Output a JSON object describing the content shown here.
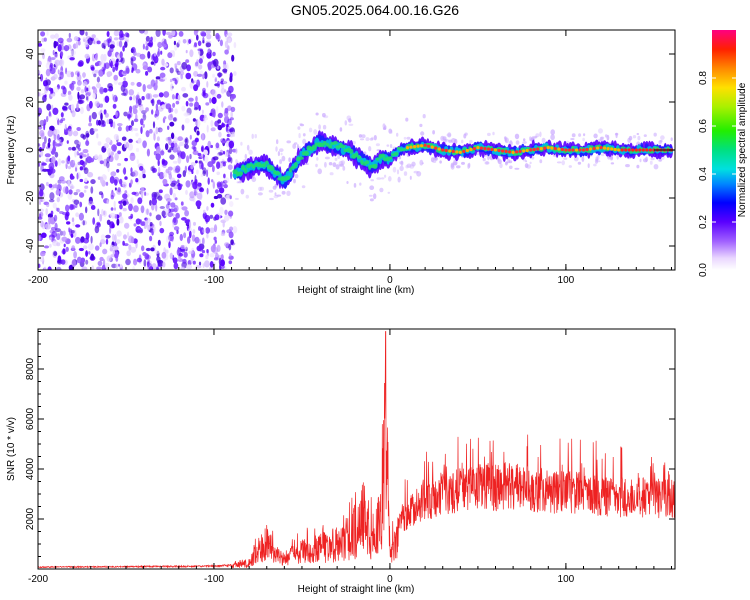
{
  "title": "GN05.2025.064.00.16.G26",
  "chart_data": [
    {
      "type": "heatmap",
      "xlabel": "Height of straight line (km)",
      "ylabel": "Frequency (Hz)",
      "xlim": [
        -200,
        162
      ],
      "ylim": [
        -50,
        50
      ],
      "x_ticks": [
        "-200",
        "-100",
        "0",
        "100"
      ],
      "y_ticks": [
        "-40",
        "-20",
        "0",
        "20",
        "40"
      ],
      "colorbar": {
        "label": "Normalized spectral amplitude",
        "ticks": [
          "0.0",
          "0.2",
          "0.4",
          "0.6",
          "0.8"
        ],
        "range": [
          0,
          1
        ]
      },
      "trace": {
        "x": [
          -88,
          -80,
          -70,
          -60,
          -50,
          -40,
          -30,
          -20,
          -10,
          -5,
          0,
          5,
          10,
          20,
          30,
          40,
          50,
          60,
          70,
          80,
          90,
          100,
          110,
          120,
          130,
          140,
          150,
          160
        ],
        "y": [
          -10,
          -7,
          -6,
          -13,
          -2,
          3,
          2,
          -2,
          -7,
          -3,
          -4,
          0,
          1,
          2,
          0,
          -1,
          1,
          0,
          -1,
          0,
          1,
          0,
          0,
          1,
          0,
          0,
          0,
          0
        ]
      }
    },
    {
      "type": "line",
      "xlabel": "Height of straight line (km)",
      "ylabel": "SNR (10 * v/v)",
      "xlim": [
        -200,
        162
      ],
      "ylim": [
        0,
        9600
      ],
      "x_ticks": [
        "-200",
        "-100",
        "0",
        "100"
      ],
      "y_ticks": [
        "2000",
        "4000",
        "6000",
        "8000"
      ],
      "color": "#ee2222",
      "series_envelope": {
        "x": [
          -200,
          -150,
          -100,
          -90,
          -80,
          -75,
          -70,
          -65,
          -60,
          -50,
          -40,
          -30,
          -20,
          -15,
          -10,
          -5,
          -2,
          0,
          5,
          10,
          20,
          30,
          40,
          50,
          60,
          70,
          80,
          90,
          100,
          110,
          120,
          130,
          140,
          150,
          160
        ],
        "y": [
          100,
          120,
          150,
          200,
          400,
          1200,
          1900,
          900,
          700,
          1200,
          1400,
          1800,
          2400,
          3500,
          2300,
          3200,
          9500,
          1200,
          2300,
          2900,
          3500,
          3900,
          4100,
          4300,
          4200,
          4300,
          4100,
          4000,
          3900,
          3900,
          3800,
          3700,
          3700,
          3700,
          3600
        ]
      }
    }
  ]
}
